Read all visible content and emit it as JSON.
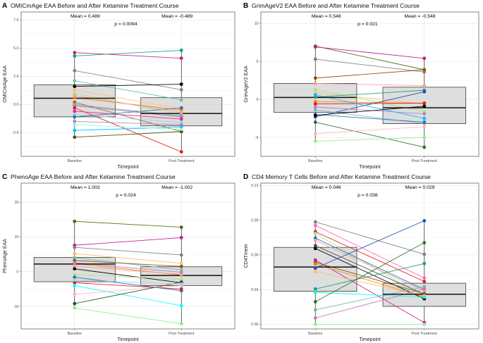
{
  "figure": {
    "background": "#ffffff"
  },
  "chart_data": [
    {
      "type": "boxplot-paired",
      "panel_label": "A",
      "title": "OMICmAge EAA Before and After Ketamine Treatment Course",
      "xlabel": "Timepoint",
      "ylabel": "OMICmAge EAA",
      "categories": [
        "Baseline",
        "Post-Treatment"
      ],
      "ylim": [
        -4.6,
        8.2
      ],
      "yticks": [
        -2.5,
        0.0,
        2.5,
        5.0,
        7.5
      ],
      "ytick_labels": [
        "-2.5",
        "0.0",
        "2.5",
        "5.0",
        "7.5"
      ],
      "box": [
        {
          "q1": -1.1,
          "median": 0.55,
          "q3": 1.75
        },
        {
          "q1": -1.9,
          "median": -0.8,
          "q3": 0.6
        }
      ],
      "whiskers": [
        [
          -2.9,
          4.6
        ],
        [
          -4.2,
          4.8
        ]
      ],
      "annotations": {
        "mean_left": "Mean = 0.489",
        "mean_right": "Mean = -0.489",
        "p_value": "p = 0.0094"
      },
      "pairs": [
        {
          "baseline": 4.6,
          "post": 4.1,
          "color": "#c51b8a"
        },
        {
          "baseline": 4.3,
          "post": 4.8,
          "color": "#1b9e77"
        },
        {
          "baseline": 3.0,
          "post": 1.3,
          "color": "#808080"
        },
        {
          "baseline": 2.1,
          "post": 0.4,
          "color": "#66c2a5"
        },
        {
          "baseline": 1.6,
          "post": 1.8,
          "color": "#000000"
        },
        {
          "baseline": 1.3,
          "post": -0.4,
          "color": "#fdbf6f"
        },
        {
          "baseline": 1.0,
          "post": -0.9,
          "color": "#b2df8a"
        },
        {
          "baseline": 0.6,
          "post": -0.5,
          "color": "#ff7f00"
        },
        {
          "baseline": 0.2,
          "post": -2.4,
          "color": "#8c6d1f"
        },
        {
          "baseline": -0.1,
          "post": -1.1,
          "color": "#7570b3"
        },
        {
          "baseline": -0.3,
          "post": -4.2,
          "color": "#e31a1c"
        },
        {
          "baseline": -0.6,
          "post": -1.3,
          "color": "#e7298a"
        },
        {
          "baseline": -0.9,
          "post": -1.6,
          "color": "#a6cee3"
        },
        {
          "baseline": -1.1,
          "post": -0.3,
          "color": "#1f78b4"
        },
        {
          "baseline": -1.5,
          "post": -1.8,
          "color": "#bc80bd"
        },
        {
          "baseline": -2.3,
          "post": -2.0,
          "color": "#00bfff"
        },
        {
          "baseline": -2.9,
          "post": -2.4,
          "color": "#4d4d00"
        },
        {
          "baseline": 0.8,
          "post": -0.7,
          "color": "#fb9a99"
        },
        {
          "baseline": 0.0,
          "post": -1.0,
          "color": "#999999"
        },
        {
          "baseline": -1.8,
          "post": -2.2,
          "color": "#80ffe0"
        }
      ]
    },
    {
      "type": "boxplot-paired",
      "panel_label": "B",
      "title": "GrimAgeV2 EAA Before and After Ketamine Treatment Course",
      "xlabel": "Timepoint",
      "ylabel": "GrimAgeV2 EAA",
      "categories": [
        "Baseline",
        "Post-Treatment"
      ],
      "ylim": [
        -7.5,
        11.5
      ],
      "yticks": [
        -5,
        0,
        5,
        10
      ],
      "ytick_labels": [
        "-5",
        "0",
        "5",
        "10"
      ],
      "box": [
        {
          "q1": -1.7,
          "median": 0.25,
          "q3": 2.1
        },
        {
          "q1": -3.2,
          "median": -1.1,
          "q3": 1.6
        }
      ],
      "whiskers": [
        [
          -5.5,
          7.0
        ],
        [
          -6.3,
          5.4
        ]
      ],
      "annotations": {
        "mean_left": "Mean = 0.548",
        "mean_right": "Mean = -0.548",
        "p_value": "p = 0.021"
      },
      "pairs": [
        {
          "baseline": 7.0,
          "post": 3.9,
          "color": "#4d6a00"
        },
        {
          "baseline": 6.9,
          "post": 5.4,
          "color": "#c51b8a"
        },
        {
          "baseline": 5.3,
          "post": 3.6,
          "color": "#808080"
        },
        {
          "baseline": 2.8,
          "post": 3.9,
          "color": "#8c510a"
        },
        {
          "baseline": 2.1,
          "post": 1.8,
          "color": "#fb9a99"
        },
        {
          "baseline": 1.3,
          "post": -1.6,
          "color": "#b2df8a"
        },
        {
          "baseline": 0.9,
          "post": -0.6,
          "color": "#fdbf6f"
        },
        {
          "baseline": 0.3,
          "post": 1.2,
          "color": "#1b9e77"
        },
        {
          "baseline": -0.3,
          "post": -0.5,
          "color": "#ff7f00"
        },
        {
          "baseline": -0.6,
          "post": -0.5,
          "color": "#e31a1c"
        },
        {
          "baseline": -1.4,
          "post": -3.2,
          "color": "#80b1d3"
        },
        {
          "baseline": -2.0,
          "post": -3.0,
          "color": "#1f78b4"
        },
        {
          "baseline": -2.3,
          "post": 1.0,
          "color": "#1f4fb4"
        },
        {
          "baseline": -3.0,
          "post": -6.3,
          "color": "#2f6f2f"
        },
        {
          "baseline": -4.5,
          "post": -3.6,
          "color": "#ffb6c1"
        },
        {
          "baseline": -5.5,
          "post": -5.0,
          "color": "#90ee90"
        },
        {
          "baseline": -1.0,
          "post": -1.9,
          "color": "#bc80bd"
        },
        {
          "baseline": 0.6,
          "post": -2.5,
          "color": "#00bfff"
        },
        {
          "baseline": -2.1,
          "post": -0.9,
          "color": "#000000"
        }
      ]
    },
    {
      "type": "boxplot-paired",
      "panel_label": "C",
      "title": "PhenoAge EAA Before and After Ketamine Treatment Course",
      "xlabel": "Timepoint",
      "ylabel": "PhenoAge EAA",
      "categories": [
        "Baseline",
        "Post-Treatment"
      ],
      "ylim": [
        -16.5,
        25.5
      ],
      "yticks": [
        -10,
        0,
        10,
        20
      ],
      "ytick_labels": [
        "-10",
        "0",
        "10",
        "20"
      ],
      "box": [
        {
          "q1": -2.9,
          "median": 2.2,
          "q3": 4.1
        },
        {
          "q1": -4.0,
          "median": -1.1,
          "q3": 1.4
        }
      ],
      "whiskers": [
        [
          -10.5,
          14.5
        ],
        [
          -15.0,
          12.8
        ]
      ],
      "annotations": {
        "mean_left": "Mean = 1.002",
        "mean_right": "Mean = -1.002",
        "p_value": "p = 0.024"
      },
      "pairs": [
        {
          "baseline": 14.5,
          "post": 12.8,
          "color": "#4d6a00"
        },
        {
          "baseline": 7.6,
          "post": 9.8,
          "color": "#c51b8a"
        },
        {
          "baseline": 7.0,
          "post": 4.8,
          "color": "#808080"
        },
        {
          "baseline": 5.2,
          "post": 2.4,
          "color": "#fdbf6f"
        },
        {
          "baseline": 4.0,
          "post": 0.5,
          "color": "#66c2a5"
        },
        {
          "baseline": 3.2,
          "post": 1.5,
          "color": "#8c510a"
        },
        {
          "baseline": 2.4,
          "post": -1.0,
          "color": "#ff7f00"
        },
        {
          "baseline": 1.6,
          "post": -0.8,
          "color": "#fb9a99"
        },
        {
          "baseline": 0.8,
          "post": -3.2,
          "color": "#000000"
        },
        {
          "baseline": -0.8,
          "post": -2.2,
          "color": "#b2df8a"
        },
        {
          "baseline": -1.6,
          "post": -5.5,
          "color": "#1f78b4"
        },
        {
          "baseline": -3.2,
          "post": -5.0,
          "color": "#e31a1c"
        },
        {
          "baseline": -4.0,
          "post": -9.8,
          "color": "#00ffff"
        },
        {
          "baseline": -6.5,
          "post": -4.0,
          "color": "#ffb6c1"
        },
        {
          "baseline": -9.2,
          "post": -3.0,
          "color": "#2f4f2f"
        },
        {
          "baseline": -10.5,
          "post": -15.0,
          "color": "#90ee90"
        },
        {
          "baseline": 2.6,
          "post": -0.2,
          "color": "#bc80bd"
        },
        {
          "baseline": -2.4,
          "post": -3.6,
          "color": "#a6cee3"
        }
      ]
    },
    {
      "type": "boxplot-paired",
      "panel_label": "D",
      "title": "CD4 Memory T Cells Before and After Ketamine Treatment Course",
      "xlabel": "Timepoint",
      "ylabel": "CD4Tmem",
      "categories": [
        "Baseline",
        "Post-Treatment"
      ],
      "ylim": [
        -0.004,
        0.122
      ],
      "yticks": [
        0.0,
        0.03,
        0.06,
        0.09,
        0.12
      ],
      "ytick_labels": [
        "0.00",
        "0.03",
        "0.06",
        "0.09",
        "0.12"
      ],
      "box": [
        {
          "q1": 0.0285,
          "median": 0.0495,
          "q3": 0.0665
        },
        {
          "q1": 0.0155,
          "median": 0.026,
          "q3": 0.0355
        }
      ],
      "whiskers": [
        [
          0.0,
          0.0885
        ],
        [
          0.0,
          0.0895
        ]
      ],
      "annotations": {
        "mean_left": "Mean = 0.046",
        "mean_right": "Mean = 0.029",
        "p_value": "p = 0.038"
      },
      "pairs": [
        {
          "baseline": 0.0885,
          "post": 0.0605,
          "color": "#808080"
        },
        {
          "baseline": 0.0855,
          "post": 0.04,
          "color": "#ff69b4"
        },
        {
          "baseline": 0.08,
          "post": 0.037,
          "color": "#e31a1c"
        },
        {
          "baseline": 0.0785,
          "post": 0.024,
          "color": "#b2df8a"
        },
        {
          "baseline": 0.0745,
          "post": 0.03,
          "color": "#1f78b4"
        },
        {
          "baseline": 0.0725,
          "post": 0.029,
          "color": "#fb9a99"
        },
        {
          "baseline": 0.068,
          "post": 0.026,
          "color": "#4d4d4d"
        },
        {
          "baseline": 0.0655,
          "post": 0.022,
          "color": "#000000"
        },
        {
          "baseline": 0.0555,
          "post": 0.0015,
          "color": "#c51b8a"
        },
        {
          "baseline": 0.0535,
          "post": 0.0265,
          "color": "#8c510a"
        },
        {
          "baseline": 0.052,
          "post": 0.0235,
          "color": "#ff7f00"
        },
        {
          "baseline": 0.0485,
          "post": 0.0895,
          "color": "#1f4fb4"
        },
        {
          "baseline": 0.0455,
          "post": 0.0245,
          "color": "#fdbf6f"
        },
        {
          "baseline": 0.0305,
          "post": 0.0525,
          "color": "#1b9e77"
        },
        {
          "baseline": 0.0275,
          "post": 0.0235,
          "color": "#00ffff"
        },
        {
          "baseline": 0.0195,
          "post": 0.0705,
          "color": "#2f6f2f"
        },
        {
          "baseline": 0.0125,
          "post": 0.0325,
          "color": "#66c2a5"
        },
        {
          "baseline": 0.0055,
          "post": 0.0305,
          "color": "#bc80bd"
        },
        {
          "baseline": 0.0,
          "post": 0.0,
          "color": "#90ee90"
        }
      ]
    }
  ]
}
